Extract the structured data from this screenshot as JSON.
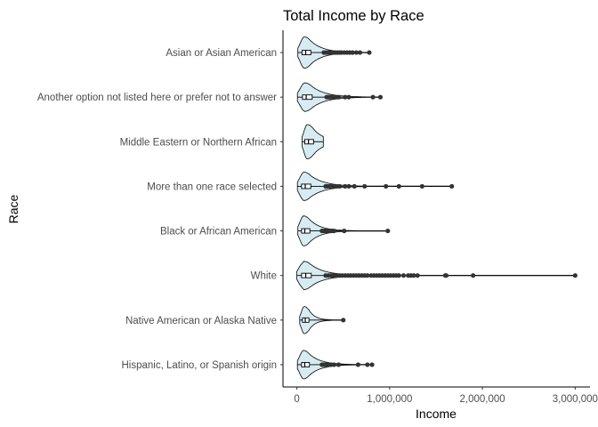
{
  "chart_data": {
    "type": "violin",
    "title": "Total Income by Race",
    "xlabel": "Income",
    "ylabel": "Race",
    "xlim": [
      -150000,
      3160000
    ],
    "x_ticks": [
      0,
      1000000,
      2000000,
      3000000
    ],
    "x_tick_labels": [
      "0",
      "1,000,000",
      "2,000,000",
      "3,000,000"
    ],
    "grid": false,
    "legend": "none",
    "colors": {
      "violin_fill": "#d6ecf2",
      "outline": "#000000",
      "points": "#333333"
    },
    "categories": [
      "Asian or Asian American",
      "Another option not listed here or prefer not to answer",
      "Middle Eastern or Northern African",
      "More than one race selected",
      "Black or African American",
      "White",
      "Native American or Alaska Native",
      "Hispanic, Latino, or Spanish origin"
    ],
    "series": [
      {
        "category": "Asian or Asian American",
        "min": 10000,
        "q1": 55000,
        "median": 95000,
        "q3": 150000,
        "whisker_high": 270000,
        "max": 780000,
        "halfwidth": 0.22,
        "outliers": [
          290000,
          310000,
          330000,
          345000,
          360000,
          380000,
          400000,
          420000,
          440000,
          460000,
          480000,
          510000,
          540000,
          570000,
          600000,
          640000,
          680000,
          780000
        ]
      },
      {
        "category": "Another option not listed here or prefer not to answer",
        "min": 5000,
        "q1": 60000,
        "median": 100000,
        "q3": 165000,
        "whisker_high": 300000,
        "max": 900000,
        "halfwidth": 0.2,
        "outliers": [
          320000,
          340000,
          360000,
          380000,
          410000,
          450000,
          520000,
          560000,
          820000,
          900000
        ]
      },
      {
        "category": "Middle Eastern or Northern African",
        "min": 55000,
        "q1": 85000,
        "median": 125000,
        "q3": 180000,
        "whisker_high": 285000,
        "max": 285000,
        "halfwidth": 0.24,
        "outliers": []
      },
      {
        "category": "More than one race selected",
        "min": 5000,
        "q1": 50000,
        "median": 90000,
        "q3": 150000,
        "whisker_high": 290000,
        "max": 1670000,
        "halfwidth": 0.2,
        "outliers": [
          310000,
          330000,
          355000,
          380000,
          420000,
          460000,
          520000,
          560000,
          620000,
          730000,
          960000,
          1100000,
          1350000,
          1670000
        ]
      },
      {
        "category": "Black or African American",
        "min": 10000,
        "q1": 50000,
        "median": 85000,
        "q3": 140000,
        "whisker_high": 250000,
        "max": 980000,
        "halfwidth": 0.21,
        "outliers": [
          270000,
          285000,
          300000,
          315000,
          330000,
          345000,
          360000,
          380000,
          400000,
          510000,
          980000
        ]
      },
      {
        "category": "White",
        "min": 0,
        "q1": 50000,
        "median": 95000,
        "q3": 155000,
        "whisker_high": 300000,
        "max": 3000000,
        "halfwidth": 0.2,
        "outliers": [
          310000,
          340000,
          370000,
          400000,
          430000,
          460000,
          490000,
          520000,
          550000,
          580000,
          610000,
          640000,
          670000,
          700000,
          730000,
          760000,
          800000,
          830000,
          860000,
          890000,
          920000,
          950000,
          980000,
          1010000,
          1040000,
          1070000,
          1100000,
          1150000,
          1200000,
          1230000,
          1260000,
          1300000,
          1600000,
          1610000,
          1900000,
          3000000
        ]
      },
      {
        "category": "Native American or Alaska Native",
        "min": 30000,
        "q1": 60000,
        "median": 90000,
        "q3": 130000,
        "whisker_high": 190000,
        "max": 500000,
        "halfwidth": 0.19,
        "outliers": [
          500000
        ]
      },
      {
        "category": "Hispanic, Latino, or Spanish origin",
        "min": 5000,
        "q1": 50000,
        "median": 85000,
        "q3": 135000,
        "whisker_high": 250000,
        "max": 810000,
        "halfwidth": 0.2,
        "outliers": [
          270000,
          290000,
          310000,
          330000,
          350000,
          370000,
          400000,
          450000,
          660000,
          760000,
          810000
        ]
      }
    ]
  }
}
